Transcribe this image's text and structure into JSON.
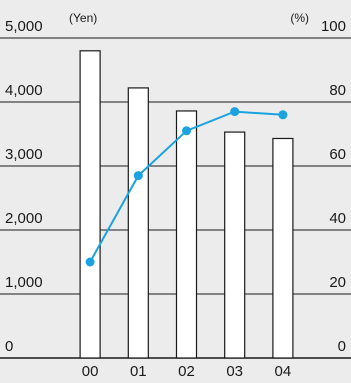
{
  "chart_data": {
    "type": "bar",
    "categories": [
      "00",
      "01",
      "02",
      "03",
      "04"
    ],
    "series": [
      {
        "type": "bar",
        "axis": "left",
        "values": [
          4800,
          4220,
          3860,
          3530,
          3430
        ],
        "color": "#ffffff",
        "stroke": "#1a1a1a"
      },
      {
        "type": "line",
        "axis": "right",
        "values": [
          30,
          57,
          71,
          77,
          76
        ],
        "color": "#1aa3e0"
      }
    ],
    "y_left": {
      "unit": "(Yen)",
      "ylim": [
        0,
        5000
      ],
      "ticks": [
        "0",
        "1,000",
        "2,000",
        "3,000",
        "4,000",
        "5,000"
      ],
      "tick_values": [
        0,
        1000,
        2000,
        3000,
        4000,
        5000
      ]
    },
    "y_right": {
      "unit": "(%)",
      "ylim": [
        0,
        100
      ],
      "ticks": [
        "0",
        "20",
        "40",
        "60",
        "80",
        "100"
      ],
      "tick_values": [
        0,
        20,
        40,
        60,
        80,
        100
      ]
    },
    "grid": true,
    "legend": "none"
  }
}
